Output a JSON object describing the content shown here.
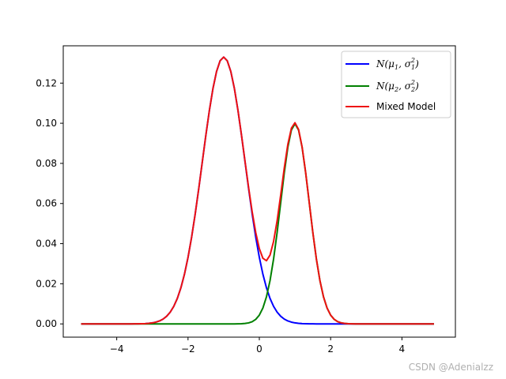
{
  "chart_data": {
    "type": "line",
    "title": "",
    "xlabel": "",
    "ylabel": "",
    "xlim": [
      -5.5,
      5.5
    ],
    "ylim": [
      -0.0066,
      0.1386
    ],
    "xticks": [
      -4,
      -2,
      0,
      2,
      4
    ],
    "xtick_labels": [
      "−4",
      "−2",
      "0",
      "2",
      "4"
    ],
    "yticks": [
      0.0,
      0.02,
      0.04,
      0.06,
      0.08,
      0.1,
      0.12
    ],
    "ytick_labels": [
      "0.00",
      "0.02",
      "0.04",
      "0.06",
      "0.08",
      "0.10",
      "0.12"
    ],
    "grid": false,
    "legend_position": "top-right",
    "x_range": [
      -5,
      4.9
    ],
    "series": [
      {
        "name": "N(μ1, σ1²)",
        "legend_main": "N(μ",
        "legend_sub1": "1",
        "legend_mid": ", σ",
        "legend_sup": "2",
        "legend_sub2": "1",
        "legend_end": ")",
        "color": "#0000ff",
        "component": {
          "weight": 0.2,
          "mean": -1,
          "sd": 0.6
        }
      },
      {
        "name": "N(μ2, σ2²)",
        "legend_main": "N(μ",
        "legend_sub1": "2",
        "legend_mid": ", σ",
        "legend_sup": "2",
        "legend_sub2": "2",
        "legend_end": ")",
        "color": "#008000",
        "component": {
          "weight": 0.1,
          "mean": 1,
          "sd": 0.4
        }
      },
      {
        "name": "Mixed Model",
        "color": "#ee1111",
        "components": "sum"
      }
    ]
  },
  "watermark": "CSDN @Adenialzz"
}
